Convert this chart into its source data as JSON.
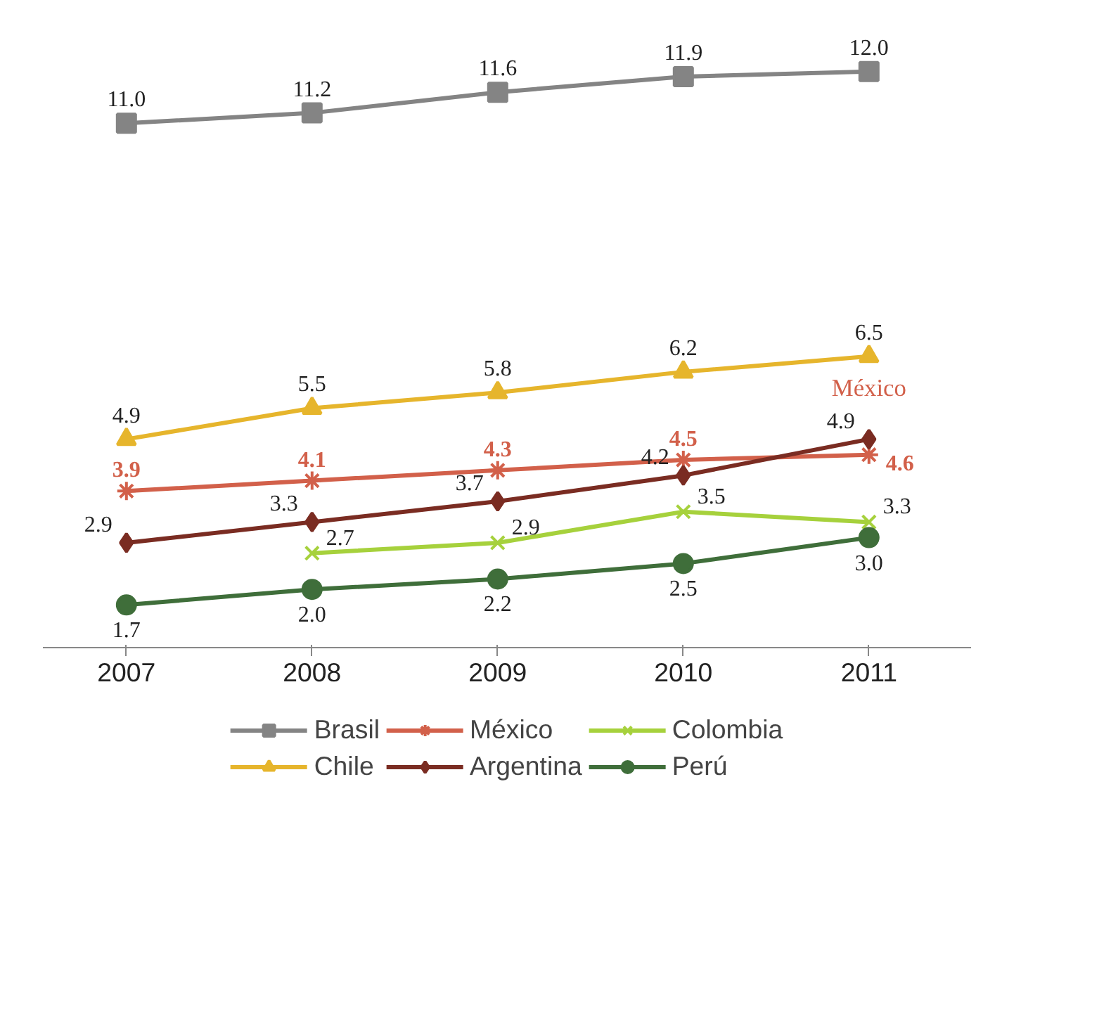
{
  "chart_data": {
    "type": "line",
    "categories": [
      "2007",
      "2008",
      "2009",
      "2010",
      "2011"
    ],
    "tick_labels": "x",
    "legend": "bottom",
    "series": [
      {
        "name": "Brasil",
        "color": "#848484",
        "marker": "square",
        "values": [
          11.0,
          11.2,
          11.6,
          11.9,
          12.0
        ],
        "value_labels": [
          "11.0",
          "11.2",
          "11.6",
          "11.9",
          "12.0"
        ]
      },
      {
        "name": "Chile",
        "color": "#e6b52c",
        "marker": "triangle",
        "values": [
          4.9,
          5.5,
          5.8,
          6.2,
          6.5
        ],
        "value_labels": [
          "4.9",
          "5.5",
          "5.8",
          "6.2",
          "6.5"
        ]
      },
      {
        "name": "México",
        "color": "#d2604a",
        "marker": "cross",
        "values": [
          3.9,
          4.1,
          4.3,
          4.5,
          4.6
        ],
        "value_labels": [
          "3.9",
          "4.1",
          "4.3",
          "4.5",
          "4.6"
        ]
      },
      {
        "name": "Argentina",
        "color": "#7a2c22",
        "marker": "diamond",
        "values": [
          2.9,
          3.3,
          3.7,
          4.2,
          4.9
        ],
        "value_labels": [
          "2.9",
          "3.3",
          "3.7",
          "4.2",
          "4.9"
        ]
      },
      {
        "name": "Colombia",
        "color": "#a6d13c",
        "marker": "cross",
        "values": [
          null,
          2.7,
          2.9,
          3.5,
          3.3
        ],
        "value_labels": [
          null,
          "2.7",
          "2.9",
          "3.5",
          "3.3"
        ]
      },
      {
        "name": "Perú",
        "color": "#3f6e3a",
        "marker": "circle",
        "values": [
          1.7,
          2.0,
          2.2,
          2.5,
          3.0
        ],
        "value_labels": [
          "1.7",
          "2.0",
          "2.2",
          "2.5",
          "3.0"
        ]
      }
    ],
    "annotations": [
      "México"
    ]
  }
}
